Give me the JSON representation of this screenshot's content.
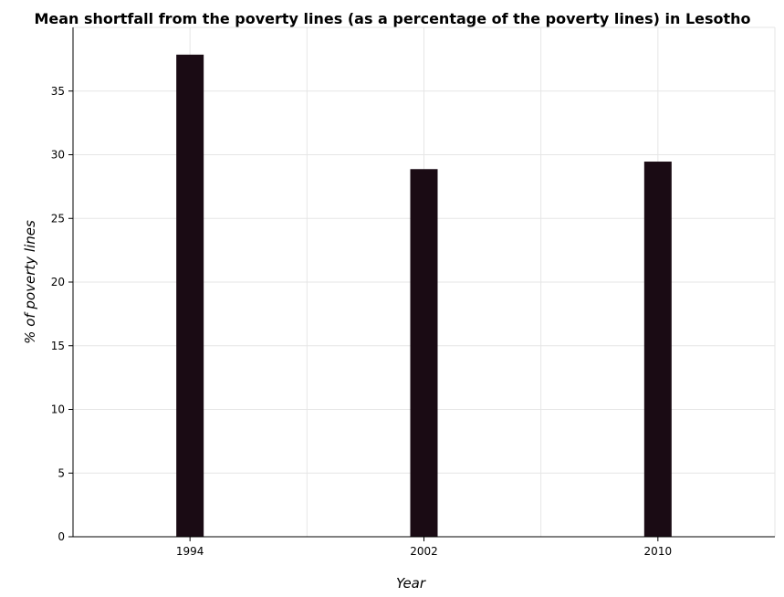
{
  "chart_data": {
    "type": "bar",
    "title": "Mean shortfall from the poverty lines (as a percentage of the poverty lines) in Lesotho",
    "xlabel": "Year",
    "ylabel": "% of poverty lines",
    "categories": [
      "1994",
      "2002",
      "2010"
    ],
    "values": [
      37.86,
      28.87,
      29.46
    ],
    "ylim": [
      0,
      40
    ],
    "yticks": [
      0,
      5,
      10,
      15,
      20,
      25,
      30,
      35
    ],
    "grid": true,
    "bar_color": "#1a0b14",
    "legend": "none"
  }
}
